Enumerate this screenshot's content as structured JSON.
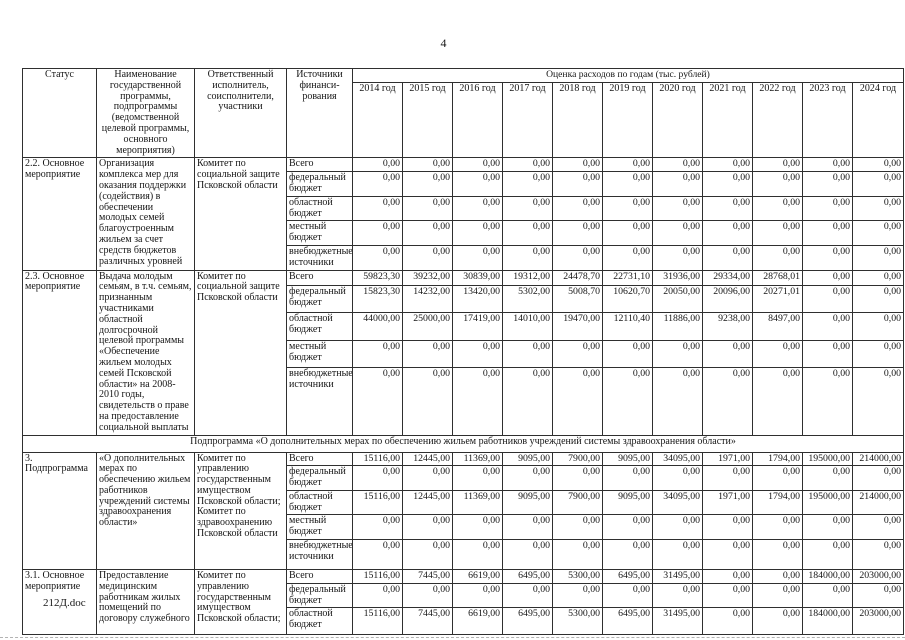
{
  "page": {
    "number": "4",
    "footer": "212Д.doc"
  },
  "table": {
    "headers": {
      "status": "Статус",
      "name": "Наименование государственной программы, подпрограммы (ведомственной целевой программы, основного мероприятия)",
      "executor": "Ответственный исполнитель, соисполнители, участники",
      "sources": "Источники финанси-рования",
      "expense_title": "Оценка расходов по годам (тыс. рублей)",
      "years": [
        "2014 год",
        "2015 год",
        "2016 год",
        "2017 год",
        "2018 год",
        "2019 год",
        "2020 год",
        "2021 год",
        "2022 год",
        "2023 год",
        "2024 год"
      ]
    },
    "body": [
      {
        "kind": "group",
        "status": "2.2. Основное мероприятие",
        "name": "Организация комплекса мер для оказания поддержки (содействия) в обеспечении молодых семей благоустроенным жильем за счет средств бюджетов различных уровней",
        "executor": "Комитет по социальной защите Псковской области",
        "sources": [
          {
            "label": "Всего",
            "values": [
              "0,00",
              "0,00",
              "0,00",
              "0,00",
              "0,00",
              "0,00",
              "0,00",
              "0,00",
              "0,00",
              "0,00",
              "0,00"
            ]
          },
          {
            "label": "федеральный бюджет",
            "values": [
              "0,00",
              "0,00",
              "0,00",
              "0,00",
              "0,00",
              "0,00",
              "0,00",
              "0,00",
              "0,00",
              "0,00",
              "0,00"
            ]
          },
          {
            "label": "областной бюджет",
            "values": [
              "0,00",
              "0,00",
              "0,00",
              "0,00",
              "0,00",
              "0,00",
              "0,00",
              "0,00",
              "0,00",
              "0,00",
              "0,00"
            ]
          },
          {
            "label": "местный бюджет",
            "values": [
              "0,00",
              "0,00",
              "0,00",
              "0,00",
              "0,00",
              "0,00",
              "0,00",
              "0,00",
              "0,00",
              "0,00",
              "0,00"
            ]
          },
          {
            "label": "внебюджетные источники",
            "values": [
              "0,00",
              "0,00",
              "0,00",
              "0,00",
              "0,00",
              "0,00",
              "0,00",
              "0,00",
              "0,00",
              "0,00",
              "0,00"
            ]
          }
        ]
      },
      {
        "kind": "group",
        "status": "2.3. Основное мероприятие",
        "name": "Выдача молодым семьям, в т.ч. семьям, признанным участниками областной долгосрочной целевой программы «Обеспечение жильем молодых семей Псковской области» на 2008-2010 годы, свидетельств о праве на предоставление социальной выплаты",
        "executor": "Комитет по социальной защите Псковской области",
        "sources": [
          {
            "label": "Всего",
            "values": [
              "59823,30",
              "39232,00",
              "30839,00",
              "19312,00",
              "24478,70",
              "22731,10",
              "31936,00",
              "29334,00",
              "28768,01",
              "0,00",
              "0,00"
            ]
          },
          {
            "label": "федеральный бюджет",
            "values": [
              "15823,30",
              "14232,00",
              "13420,00",
              "5302,00",
              "5008,70",
              "10620,70",
              "20050,00",
              "20096,00",
              "20271,01",
              "0,00",
              "0,00"
            ]
          },
          {
            "label": "областной бюджет",
            "values": [
              "44000,00",
              "25000,00",
              "17419,00",
              "14010,00",
              "19470,00",
              "12110,40",
              "11886,00",
              "9238,00",
              "8497,00",
              "0,00",
              "0,00"
            ]
          },
          {
            "label": "местный бюджет",
            "values": [
              "0,00",
              "0,00",
              "0,00",
              "0,00",
              "0,00",
              "0,00",
              "0,00",
              "0,00",
              "0,00",
              "0,00",
              "0,00"
            ]
          },
          {
            "label": "внебюджетные источники",
            "values": [
              "0,00",
              "0,00",
              "0,00",
              "0,00",
              "0,00",
              "0,00",
              "0,00",
              "0,00",
              "0,00",
              "0,00",
              "0,00"
            ]
          }
        ]
      },
      {
        "kind": "section",
        "text": "Подпрограмма «О дополнительных мерах по обеспечению жильем работников учреждений системы здравоохранения области»"
      },
      {
        "kind": "group",
        "status": "3. Подпрограмма",
        "name": "«О дополнительных мерах по обеспечению жильем работников учреждений системы здравоохранения области»",
        "executor": "Комитет по управлению государственным имуществом Псковской области; Комитет по здравоохранению Псковской области",
        "sources": [
          {
            "label": "Всего",
            "values": [
              "15116,00",
              "12445,00",
              "11369,00",
              "9095,00",
              "7900,00",
              "9095,00",
              "34095,00",
              "1971,00",
              "1794,00",
              "195000,00",
              "214000,00"
            ]
          },
          {
            "label": "федеральный бюджет",
            "values": [
              "0,00",
              "0,00",
              "0,00",
              "0,00",
              "0,00",
              "0,00",
              "0,00",
              "0,00",
              "0,00",
              "0,00",
              "0,00"
            ]
          },
          {
            "label": "областной бюджет",
            "values": [
              "15116,00",
              "12445,00",
              "11369,00",
              "9095,00",
              "7900,00",
              "9095,00",
              "34095,00",
              "1971,00",
              "1794,00",
              "195000,00",
              "214000,00"
            ]
          },
          {
            "label": "местный бюджет",
            "values": [
              "0,00",
              "0,00",
              "0,00",
              "0,00",
              "0,00",
              "0,00",
              "0,00",
              "0,00",
              "0,00",
              "0,00",
              "0,00"
            ]
          },
          {
            "label": "внебюджетные источники",
            "values": [
              "0,00",
              "0,00",
              "0,00",
              "0,00",
              "0,00",
              "0,00",
              "0,00",
              "0,00",
              "0,00",
              "0,00",
              "0,00"
            ]
          }
        ]
      },
      {
        "kind": "group",
        "status": "3.1. Основное мероприятие",
        "name": "Предоставление медицинским работникам жилых помещений по договору служебного",
        "executor": "Комитет по управлению государственным имуществом Псковской области;",
        "sources": [
          {
            "label": "Всего",
            "values": [
              "15116,00",
              "7445,00",
              "6619,00",
              "6495,00",
              "5300,00",
              "6495,00",
              "31495,00",
              "0,00",
              "0,00",
              "184000,00",
              "203000,00"
            ]
          },
          {
            "label": "федеральный бюджет",
            "values": [
              "0,00",
              "0,00",
              "0,00",
              "0,00",
              "0,00",
              "0,00",
              "0,00",
              "0,00",
              "0,00",
              "0,00",
              "0,00"
            ]
          },
          {
            "label": "областной бюджет",
            "values": [
              "15116,00",
              "7445,00",
              "6619,00",
              "6495,00",
              "5300,00",
              "6495,00",
              "31495,00",
              "0,00",
              "0,00",
              "184000,00",
              "203000,00"
            ]
          }
        ]
      }
    ]
  }
}
